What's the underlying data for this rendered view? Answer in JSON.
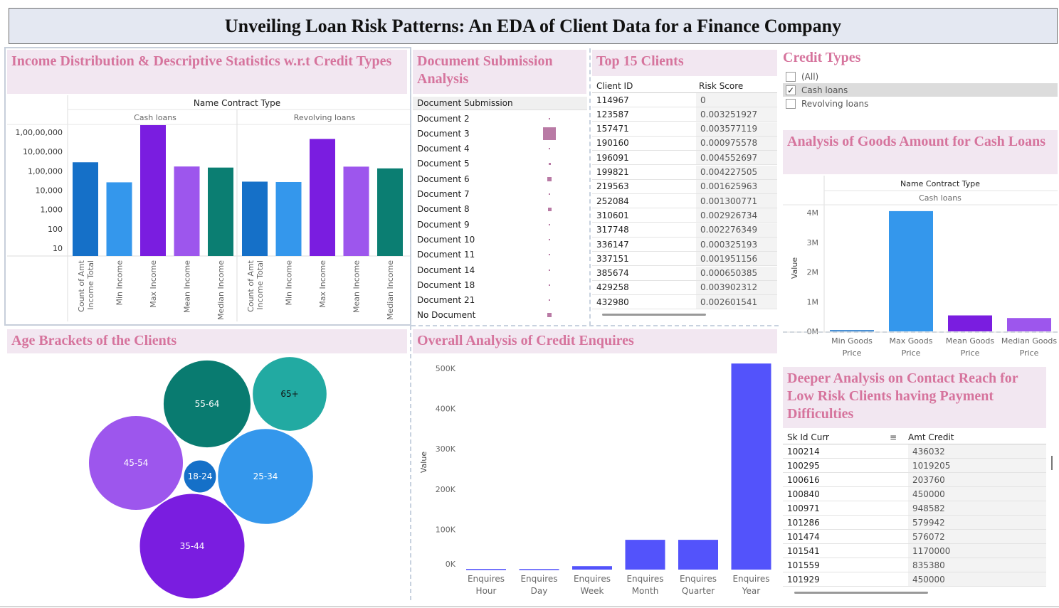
{
  "page_title": "Unveiling Loan Risk Patterns: An EDA of Client Data for a Finance Company",
  "panels": {
    "income": {
      "title": "Income Distribution & Descriptive Statistics w.r.t Credit Types",
      "header": "Name Contract Type"
    },
    "documents": {
      "title": "Document Submission Analysis",
      "header": "Document Submission"
    },
    "top_clients": {
      "title": "Top 15 Clients",
      "col1": "Client ID",
      "col2": "Risk Score"
    },
    "credit_filter": {
      "title": "Credit Types"
    },
    "goods": {
      "title": "Analysis of Goods Amount for Cash Loans",
      "header": "Name Contract Type",
      "subheader": "Cash loans"
    },
    "age": {
      "title": "Age Brackets of the Clients"
    },
    "enquiries": {
      "title": "Overall Analysis of Credit Enquires"
    },
    "contact": {
      "title": "Deeper Analysis on Contact Reach for Low Risk Clients having Payment Difficulties",
      "col1": "Sk Id Curr",
      "col2": "Amt Credit"
    }
  },
  "filter_options": [
    {
      "label": "(All)",
      "checked": false
    },
    {
      "label": "Cash loans",
      "checked": true
    },
    {
      "label": "Revolving loans",
      "checked": false
    }
  ],
  "documents": [
    {
      "label": "Document 2",
      "size": 1
    },
    {
      "label": "Document 3",
      "size": 18
    },
    {
      "label": "Document 4",
      "size": 1
    },
    {
      "label": "Document 5",
      "size": 3
    },
    {
      "label": "Document 6",
      "size": 6
    },
    {
      "label": "Document 7",
      "size": 1
    },
    {
      "label": "Document 8",
      "size": 5
    },
    {
      "label": "Document 9",
      "size": 1
    },
    {
      "label": "Document 10",
      "size": 1
    },
    {
      "label": "Document 11",
      "size": 1
    },
    {
      "label": "Document 14",
      "size": 1
    },
    {
      "label": "Document 18",
      "size": 1
    },
    {
      "label": "Document 21",
      "size": 1
    },
    {
      "label": "No Document",
      "size": 6
    }
  ],
  "top_clients": [
    {
      "id": "114967",
      "score": "0"
    },
    {
      "id": "123587",
      "score": "0.003251927"
    },
    {
      "id": "157471",
      "score": "0.003577119"
    },
    {
      "id": "190160",
      "score": "0.000975578"
    },
    {
      "id": "196091",
      "score": "0.004552697"
    },
    {
      "id": "199821",
      "score": "0.004227505"
    },
    {
      "id": "219563",
      "score": "0.001625963"
    },
    {
      "id": "252084",
      "score": "0.001300771"
    },
    {
      "id": "310601",
      "score": "0.002926734"
    },
    {
      "id": "317748",
      "score": "0.002276349"
    },
    {
      "id": "336147",
      "score": "0.000325193"
    },
    {
      "id": "337151",
      "score": "0.001951156"
    },
    {
      "id": "385674",
      "score": "0.000650385"
    },
    {
      "id": "429258",
      "score": "0.003902312"
    },
    {
      "id": "432980",
      "score": "0.002601541"
    }
  ],
  "contact_rows": [
    {
      "id": "100214",
      "amt": "436032"
    },
    {
      "id": "100295",
      "amt": "1019205"
    },
    {
      "id": "100616",
      "amt": "203760"
    },
    {
      "id": "100840",
      "amt": "450000"
    },
    {
      "id": "100971",
      "amt": "948582"
    },
    {
      "id": "101286",
      "amt": "579942"
    },
    {
      "id": "101474",
      "amt": "576072"
    },
    {
      "id": "101541",
      "amt": "1170000"
    },
    {
      "id": "101559",
      "amt": "835380"
    },
    {
      "id": "101929",
      "amt": "450000"
    }
  ],
  "colors": {
    "count": "#1570c8",
    "min": "#3497ec",
    "max": "#7a1de0",
    "mean": "#9d56ed",
    "median": "#0b7e72",
    "enquiry": "#5353fb",
    "doc": "#b97aa5",
    "age_teal_dark": "#097b70",
    "age_teal": "#22aaa2",
    "age_blue": "#3497ec",
    "age_blue_dark": "#1570c8",
    "age_purple": "#9d56ed",
    "age_violet": "#7a1de0"
  },
  "chart_data": [
    {
      "type": "bar",
      "title": "Income Distribution & Descriptive Statistics w.r.t Credit Types",
      "scale": "log",
      "yticks": [
        "10",
        "100",
        "1,000",
        "10,000",
        "1,00,000",
        "10,00,000",
        "1,00,00,000"
      ],
      "facet_label": "Name Contract Type",
      "facets": [
        {
          "name": "Cash loans",
          "categories": [
            "Count of Amt Income Total",
            "Min Income",
            "Max Income",
            "Mean Income",
            "Median Income"
          ],
          "values": [
            278000,
            25650,
            117000000,
            169000,
            148500
          ]
        },
        {
          "name": "Revolving loans",
          "categories": [
            "Count of Amt Income Total",
            "Min Income",
            "Max Income",
            "Mean Income",
            "Median Income"
          ],
          "values": [
            27800,
            26550,
            4500000,
            166000,
            135000
          ]
        }
      ]
    },
    {
      "type": "bar",
      "title": "Analysis of Goods Amount for Cash Loans",
      "ylabel": "Value",
      "categories": [
        "Min Goods Price",
        "Max Goods Price",
        "Mean Goods Price",
        "Median Goods Price"
      ],
      "values": [
        40500,
        4050000,
        538000,
        450000
      ],
      "ylim": [
        0,
        4300000
      ],
      "yticks": [
        "0M",
        "1M",
        "2M",
        "3M",
        "4M"
      ]
    },
    {
      "type": "bubble",
      "title": "Age Brackets of the Clients",
      "categories": [
        "55-64",
        "65+",
        "45-54",
        "18-24",
        "25-34",
        "35-44"
      ],
      "values": [
        36,
        26,
        42,
        5,
        43,
        52
      ]
    },
    {
      "type": "bar",
      "title": "Overall Analysis of Credit Enquires",
      "ylabel": "Value",
      "categories": [
        "Enquires Hour",
        "Enquires Day",
        "Enquires Week",
        "Enquires Month",
        "Enquires Quarter",
        "Enquires Year"
      ],
      "values": [
        1700,
        1500,
        8500,
        74000,
        74000,
        512000
      ],
      "ylim": [
        0,
        520000
      ],
      "yticks": [
        "0K",
        "100K",
        "200K",
        "300K",
        "400K",
        "500K"
      ]
    }
  ]
}
